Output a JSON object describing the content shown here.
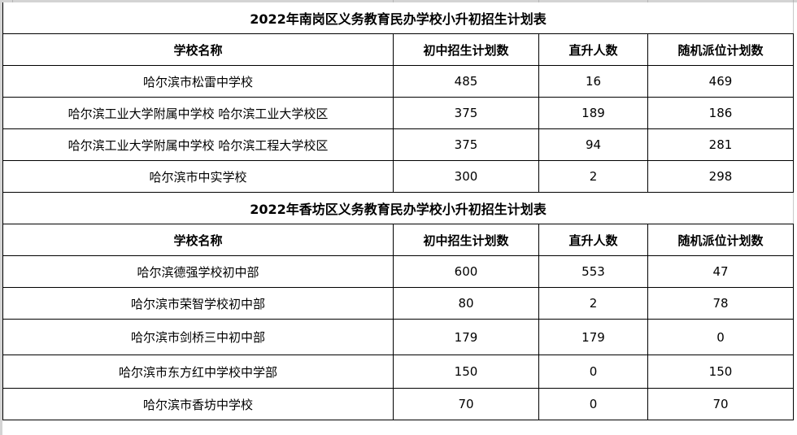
{
  "sections": [
    {
      "title": "2022年南岗区义务教育民办学校小升初招生计划表",
      "headers": [
        "学校名称",
        "初中招生计划数",
        "直升人数",
        "随机派位计划数"
      ],
      "rows": [
        [
          "哈尔滨市松雷中学校",
          "485",
          "16",
          "469"
        ],
        [
          "哈尔滨工业大学附属中学校 哈尔滨工业大学校区",
          "375",
          "189",
          "186"
        ],
        [
          "哈尔滨工业大学附属中学校 哈尔滨工程大学校区",
          "375",
          "94",
          "281"
        ],
        [
          "哈尔滨市中实学校",
          "300",
          "2",
          "298"
        ]
      ]
    },
    {
      "title": "2022年香坊区义务教育民办学校小升初招生计划表",
      "headers": [
        "学校名称",
        "初中招生计划数",
        "直升人数",
        "随机派位计划数"
      ],
      "rows": [
        [
          "哈尔滨德强学校初中部",
          "600",
          "553",
          "47"
        ],
        [
          "哈尔滨市荣智学校初中部",
          "80",
          "2",
          "78"
        ],
        [
          "哈尔滨市剑桥三中初中部",
          "179",
          "179",
          "0"
        ],
        [
          "哈尔滨市东方红中学校中学部",
          "150",
          "0",
          "150"
        ],
        [
          "哈尔滨市香坊中学校",
          "70",
          "0",
          "70"
        ]
      ]
    }
  ]
}
